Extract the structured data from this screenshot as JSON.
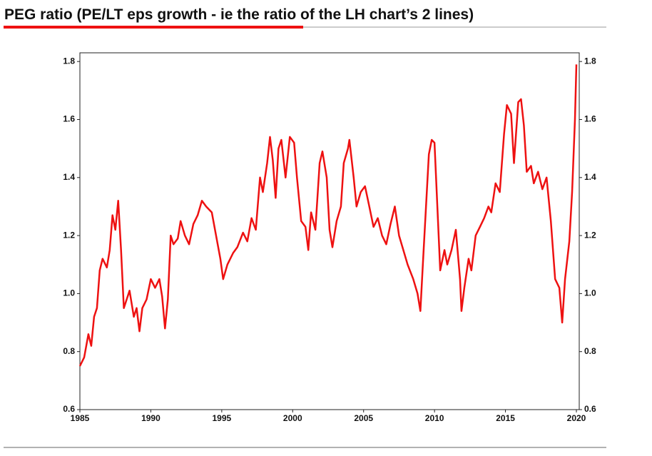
{
  "chart_data": {
    "type": "line",
    "title": "PEG ratio (PE/LT eps growth - ie the ratio of the LH chart’s 2 lines)",
    "xlim": [
      1985,
      2020.5
    ],
    "xticks": [
      1985,
      1990,
      1995,
      2000,
      2005,
      2010,
      2015,
      2020
    ],
    "ylim": [
      0.6,
      1.83
    ],
    "yticks": [
      0.6,
      0.8,
      {
        "value": 1,
        "label": "1.0"
      },
      1.2,
      1.4,
      1.6,
      1.8
    ],
    "x": [
      1985.0,
      1985.3,
      1985.6,
      1985.8,
      1986.0,
      1986.2,
      1986.4,
      1986.6,
      1986.9,
      1987.1,
      1987.3,
      1987.5,
      1987.7,
      1987.9,
      1988.1,
      1988.3,
      1988.5,
      1988.8,
      1989.0,
      1989.2,
      1989.4,
      1989.7,
      1990.0,
      1990.3,
      1990.6,
      1990.8,
      1991.0,
      1991.2,
      1991.4,
      1991.6,
      1991.9,
      1992.1,
      1992.4,
      1992.7,
      1993.0,
      1993.3,
      1993.6,
      1993.9,
      1994.3,
      1994.6,
      1994.9,
      1995.1,
      1995.4,
      1995.8,
      1996.1,
      1996.5,
      1996.8,
      1997.1,
      1997.4,
      1997.7,
      1997.9,
      1998.2,
      1998.4,
      1998.6,
      1998.8,
      1999.0,
      1999.2,
      1999.5,
      1999.8,
      2000.1,
      2000.3,
      2000.6,
      2000.9,
      2001.1,
      2001.3,
      2001.6,
      2001.9,
      2002.1,
      2002.4,
      2002.6,
      2002.8,
      2003.1,
      2003.4,
      2003.6,
      2003.9,
      2004.0,
      2004.3,
      2004.5,
      2004.8,
      2005.1,
      2005.4,
      2005.7,
      2006.0,
      2006.3,
      2006.6,
      2006.9,
      2007.2,
      2007.5,
      2007.8,
      2008.1,
      2008.5,
      2008.8,
      2009.0,
      2009.2,
      2009.4,
      2009.6,
      2009.8,
      2010.0,
      2010.2,
      2010.4,
      2010.7,
      2010.9,
      2011.2,
      2011.5,
      2011.8,
      2011.9,
      2012.1,
      2012.4,
      2012.6,
      2012.9,
      2013.2,
      2013.5,
      2013.8,
      2014.0,
      2014.3,
      2014.6,
      2014.9,
      2015.1,
      2015.4,
      2015.6,
      2015.9,
      2016.1,
      2016.3,
      2016.5,
      2016.8,
      2017.0,
      2017.3,
      2017.6,
      2017.9,
      2018.2,
      2018.5,
      2018.8,
      2019.0,
      2019.2,
      2019.5,
      2019.7,
      2019.9,
      2020.0
    ],
    "series": [
      {
        "color": "#ee1111",
        "values": [
          0.75,
          0.78,
          0.86,
          0.82,
          0.92,
          0.95,
          1.08,
          1.12,
          1.09,
          1.15,
          1.27,
          1.22,
          1.32,
          1.15,
          0.95,
          0.98,
          1.01,
          0.92,
          0.95,
          0.87,
          0.95,
          0.98,
          1.05,
          1.02,
          1.05,
          0.99,
          0.88,
          0.98,
          1.2,
          1.17,
          1.19,
          1.25,
          1.2,
          1.17,
          1.24,
          1.27,
          1.32,
          1.3,
          1.28,
          1.2,
          1.12,
          1.05,
          1.1,
          1.14,
          1.16,
          1.21,
          1.18,
          1.26,
          1.22,
          1.4,
          1.35,
          1.45,
          1.54,
          1.46,
          1.33,
          1.5,
          1.53,
          1.4,
          1.54,
          1.52,
          1.4,
          1.25,
          1.23,
          1.15,
          1.28,
          1.22,
          1.45,
          1.49,
          1.4,
          1.22,
          1.16,
          1.25,
          1.3,
          1.45,
          1.5,
          1.53,
          1.4,
          1.3,
          1.35,
          1.37,
          1.3,
          1.23,
          1.26,
          1.2,
          1.17,
          1.24,
          1.3,
          1.2,
          1.15,
          1.1,
          1.05,
          1.0,
          0.94,
          1.12,
          1.3,
          1.48,
          1.53,
          1.52,
          1.3,
          1.08,
          1.15,
          1.1,
          1.15,
          1.22,
          1.05,
          0.94,
          1.02,
          1.12,
          1.08,
          1.2,
          1.23,
          1.26,
          1.3,
          1.28,
          1.38,
          1.35,
          1.55,
          1.65,
          1.62,
          1.45,
          1.66,
          1.67,
          1.58,
          1.42,
          1.44,
          1.38,
          1.42,
          1.36,
          1.4,
          1.25,
          1.05,
          1.02,
          0.9,
          1.05,
          1.18,
          1.35,
          1.6,
          1.79
        ]
      }
    ]
  }
}
